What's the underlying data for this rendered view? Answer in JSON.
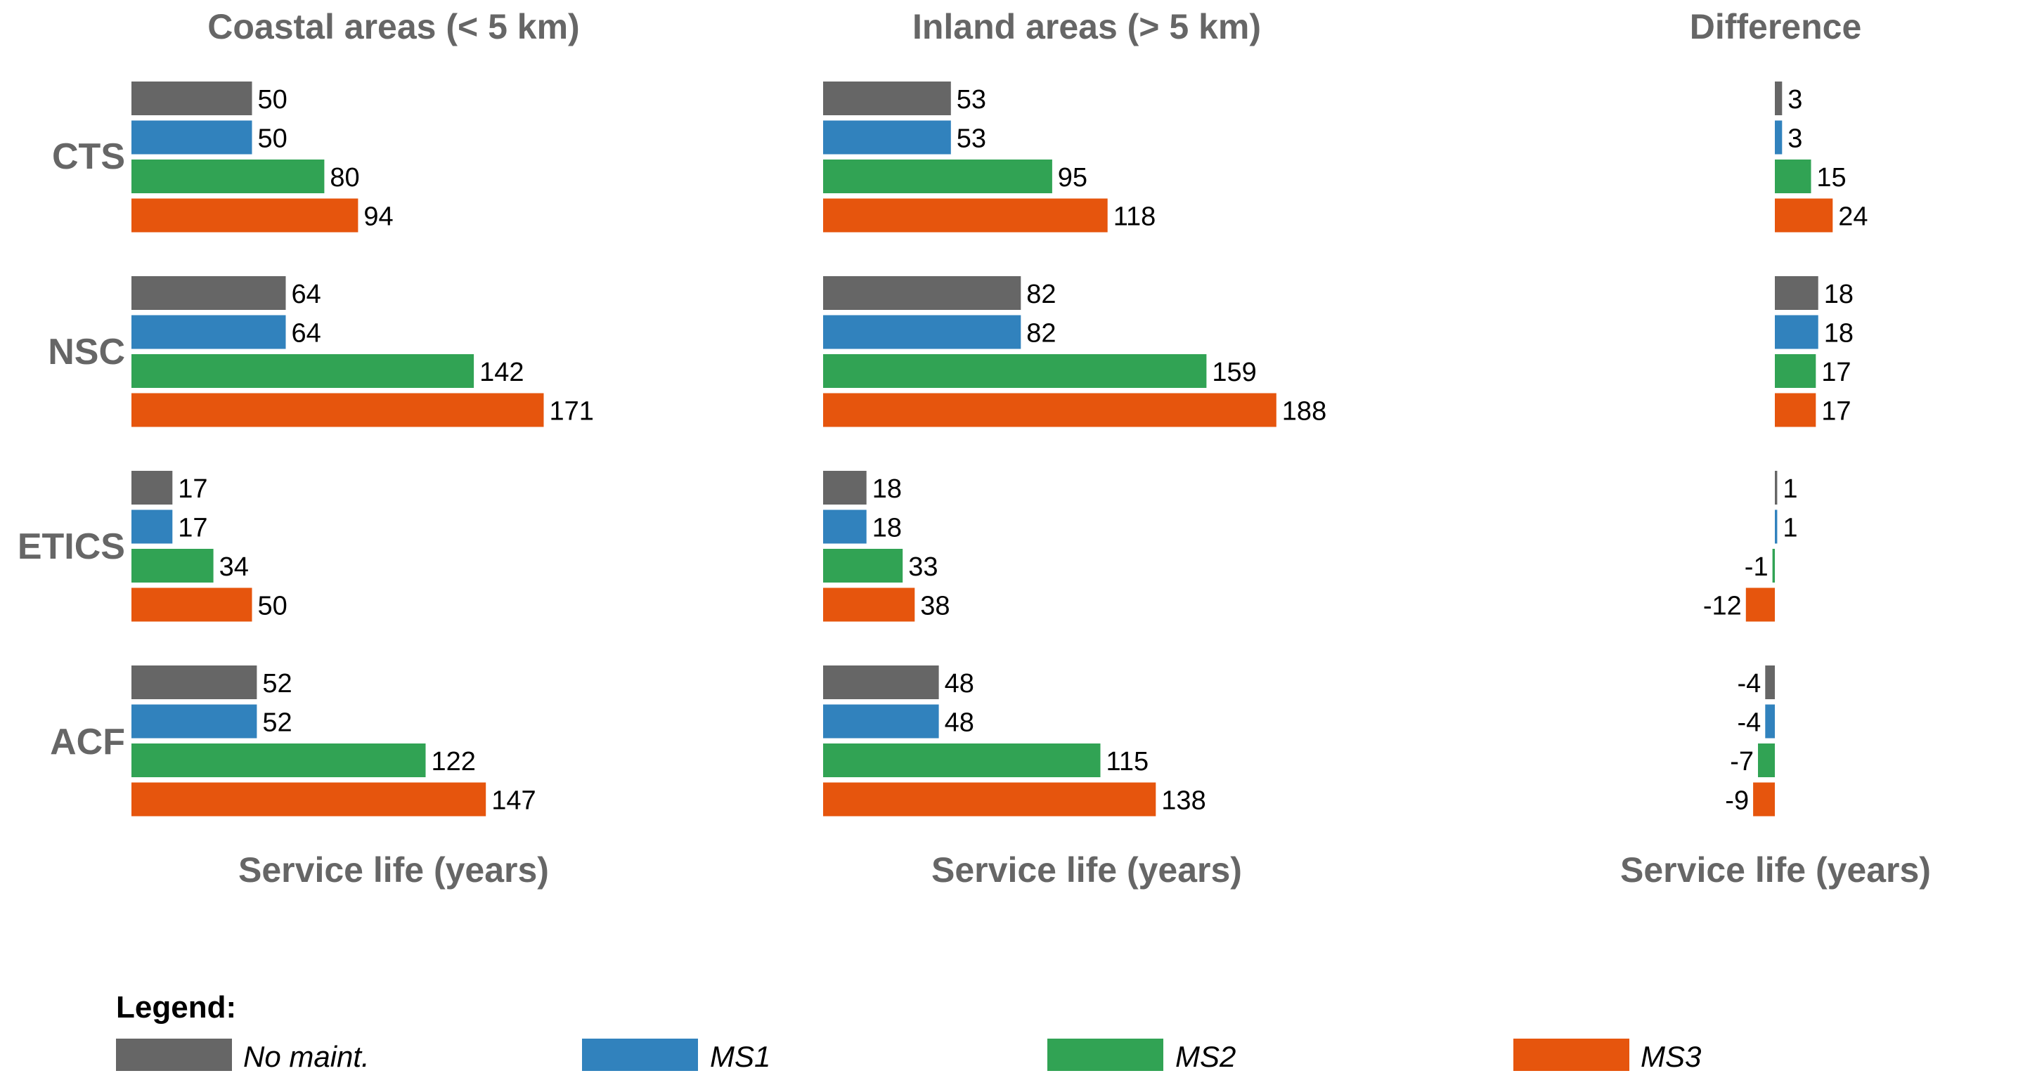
{
  "chart_data": {
    "type": "bar",
    "orientation": "horizontal",
    "groups": [
      "CTS",
      "NSC",
      "ETICS",
      "ACF"
    ],
    "series_names": [
      "No maint.",
      "MS1",
      "MS2",
      "MS3"
    ],
    "colors": [
      "#666666",
      "#3182bd",
      "#31a354",
      "#e6550d"
    ],
    "legend": {
      "title": "Legend:",
      "placement": "bottom"
    },
    "panels": [
      {
        "title": "Coastal areas (< 5 km)",
        "xlabel": "Service life (years)",
        "values": [
          [
            50,
            50,
            80,
            94
          ],
          [
            64,
            64,
            142,
            171
          ],
          [
            17,
            17,
            34,
            50
          ],
          [
            52,
            52,
            122,
            147
          ]
        ]
      },
      {
        "title": "Inland areas (> 5 km)",
        "xlabel": "Service life (years)",
        "values": [
          [
            53,
            53,
            95,
            118
          ],
          [
            82,
            82,
            159,
            188
          ],
          [
            18,
            18,
            33,
            38
          ],
          [
            48,
            48,
            115,
            138
          ]
        ]
      },
      {
        "title": "Difference",
        "xlabel": "Service life (years)",
        "values": [
          [
            3,
            3,
            15,
            24
          ],
          [
            18,
            18,
            17,
            17
          ],
          [
            1,
            1,
            -1,
            -12
          ],
          [
            -4,
            -4,
            -7,
            -9
          ]
        ]
      }
    ]
  }
}
